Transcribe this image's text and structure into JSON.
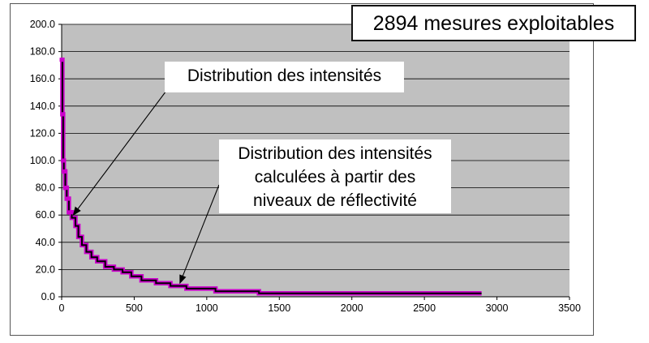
{
  "count_label": "2894 mesures exploitables",
  "annotations": {
    "measured": "Distribution des intensités",
    "computed_lines": [
      "Distribution des intensités",
      "calculées à partir des",
      "niveaux de réflectivité"
    ]
  },
  "colors": {
    "plot_background": "#c0c0c0",
    "gridline": "#000000",
    "measured_series": "#000000",
    "computed_series": "#cc00cc"
  },
  "chart_data": {
    "type": "line",
    "title": "",
    "xlabel": "",
    "ylabel": "",
    "xlim": [
      0,
      3500
    ],
    "ylim": [
      0,
      200
    ],
    "grid": true,
    "x_ticks": [
      "0",
      "500",
      "1000",
      "1500",
      "2000",
      "2500",
      "3000",
      "3500"
    ],
    "y_ticks": [
      "0.0",
      "20.0",
      "40.0",
      "60.0",
      "80.0",
      "100.0",
      "120.0",
      "140.0",
      "160.0",
      "180.0",
      "200.0"
    ],
    "series": [
      {
        "x": [
          0,
          5,
          5,
          10,
          10,
          15,
          15,
          25,
          25,
          35,
          35,
          50,
          50,
          70,
          70,
          95,
          95,
          115,
          115,
          140,
          140,
          170,
          170,
          205,
          205,
          245,
          245,
          300,
          300,
          360,
          360,
          420,
          420,
          480,
          480,
          550,
          550,
          650,
          650,
          750,
          750,
          860,
          860,
          1060,
          1060,
          1360,
          1360,
          2894
        ],
        "y": [
          174,
          174,
          134,
          134,
          100,
          100,
          92,
          92,
          80,
          80,
          72,
          72,
          62,
          62,
          58,
          58,
          52,
          52,
          44,
          44,
          38,
          38,
          33,
          33,
          29,
          29,
          26,
          26,
          22,
          22,
          20,
          20,
          18,
          18,
          15,
          15,
          12,
          12,
          10,
          10,
          8,
          8,
          6,
          6,
          4,
          4,
          2.5,
          2.5
        ]
      },
      {
        "x": [
          0,
          5,
          5,
          10,
          10,
          15,
          15,
          25,
          25,
          35,
          35,
          50,
          50,
          70,
          70,
          95,
          95,
          115,
          115,
          140,
          140,
          170,
          170,
          205,
          205,
          245,
          245,
          300,
          300,
          360,
          360,
          420,
          420,
          480,
          480,
          550,
          550,
          650,
          650,
          750,
          750,
          860,
          860,
          1060,
          1060,
          1360,
          1360,
          2894
        ],
        "y": [
          174,
          174,
          134,
          134,
          100,
          100,
          92,
          92,
          80,
          80,
          72,
          72,
          62,
          62,
          58,
          58,
          52,
          52,
          44,
          44,
          38,
          38,
          33,
          33,
          29,
          29,
          26,
          26,
          22,
          22,
          20,
          20,
          18,
          18,
          15,
          15,
          12,
          12,
          10,
          10,
          8,
          8,
          6,
          6,
          4,
          4,
          2.5,
          2.5
        ]
      }
    ],
    "arrows": [
      {
        "from_label": "measured",
        "to": [
          80,
          60
        ]
      },
      {
        "from_label": "computed",
        "to": [
          815,
          10
        ]
      }
    ]
  }
}
